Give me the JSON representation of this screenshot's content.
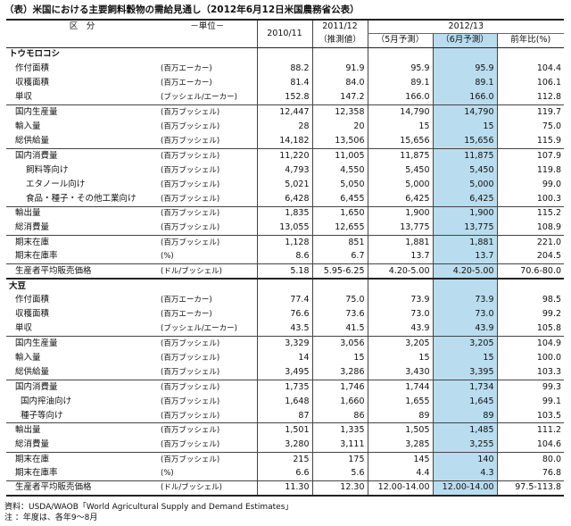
{
  "title": "（表）米国における主要飼料穀物の需給見通し（2012年6月12日米国農務省公表）",
  "header": {
    "col_item": "区　分",
    "col_unit": "－単位－",
    "col_2010": "2010/11",
    "col_2011": "2011/12",
    "col_2011_sub": "（推測値）",
    "col_2012": "2012/13",
    "col_may": "（5月予測）",
    "col_jun": "（6月予測）",
    "col_yoy": "前年比(%)"
  },
  "sections": [
    {
      "name": "トウモロコシ",
      "rows": [
        {
          "label": "作付面積",
          "unit": "(百万エーカー)",
          "v2010": "88.2",
          "v2011": "91.9",
          "may": "95.9",
          "jun": "95.9",
          "yoy": "104.4",
          "indent": 1,
          "line": false
        },
        {
          "label": "収穫面積",
          "unit": "(百万エーカー)",
          "v2010": "81.4",
          "v2011": "84.0",
          "may": "89.1",
          "jun": "89.1",
          "yoy": "106.1",
          "indent": 1,
          "line": false
        },
        {
          "label": "単収",
          "unit": "(ブッシェル/エーカー)",
          "v2010": "152.8",
          "v2011": "147.2",
          "may": "166.0",
          "jun": "166.0",
          "yoy": "112.8",
          "indent": 1,
          "line": true
        },
        {
          "label": "国内生産量",
          "unit": "(百万ブッシェル)",
          "v2010": "12,447",
          "v2011": "12,358",
          "may": "14,790",
          "jun": "14,790",
          "yoy": "119.7",
          "indent": 1,
          "line": false
        },
        {
          "label": "輸入量",
          "unit": "(百万ブッシェル)",
          "v2010": "28",
          "v2011": "20",
          "may": "15",
          "jun": "15",
          "yoy": "75.0",
          "indent": 1,
          "line": false
        },
        {
          "label": "総供給量",
          "unit": "(百万ブッシェル)",
          "v2010": "14,182",
          "v2011": "13,506",
          "may": "15,656",
          "jun": "15,656",
          "yoy": "115.9",
          "indent": 1,
          "line": true
        },
        {
          "label": "国内消費量",
          "unit": "(百万ブッシェル)",
          "v2010": "11,220",
          "v2011": "11,005",
          "may": "11,875",
          "jun": "11,875",
          "yoy": "107.9",
          "indent": 1,
          "line": false
        },
        {
          "label": "飼料等向け",
          "unit": "(百万ブッシェル)",
          "v2010": "4,793",
          "v2011": "4,550",
          "may": "5,450",
          "jun": "5,450",
          "yoy": "119.8",
          "indent": 2,
          "line": false
        },
        {
          "label": "エタノール向け",
          "unit": "(百万ブッシェル)",
          "v2010": "5,021",
          "v2011": "5,050",
          "may": "5,000",
          "jun": "5,000",
          "yoy": "99.0",
          "indent": 2,
          "line": false
        },
        {
          "label": "食品・種子・その他工業向け",
          "unit": "(百万ブッシェル)",
          "v2010": "6,428",
          "v2011": "6,455",
          "may": "6,425",
          "jun": "6,425",
          "yoy": "100.3",
          "indent": 2,
          "line": true
        },
        {
          "label": "輸出量",
          "unit": "(百万ブッシェル)",
          "v2010": "1,835",
          "v2011": "1,650",
          "may": "1,900",
          "jun": "1,900",
          "yoy": "115.2",
          "indent": 1,
          "line": false
        },
        {
          "label": "総消費量",
          "unit": "(百万ブッシェル)",
          "v2010": "13,055",
          "v2011": "12,655",
          "may": "13,775",
          "jun": "13,775",
          "yoy": "108.9",
          "indent": 1,
          "line": true
        },
        {
          "label": "期末在庫",
          "unit": "(百万ブッシェル)",
          "v2010": "1,128",
          "v2011": "851",
          "may": "1,881",
          "jun": "1,881",
          "yoy": "221.0",
          "indent": 1,
          "line": false
        },
        {
          "label": "期末在庫率",
          "unit": "(%)",
          "v2010": "8.6",
          "v2011": "6.7",
          "may": "13.7",
          "jun": "13.7",
          "yoy": "204.5",
          "indent": 1,
          "line": true
        },
        {
          "label": "生産者平均販売価格",
          "unit": "(ドル/ブッシェル)",
          "v2010": "5.18",
          "v2011": "5.95-6.25",
          "may": "4.20-5.00",
          "jun": "4.20-5.00",
          "yoy": "70.6-80.0",
          "indent": 1,
          "line": false
        }
      ]
    },
    {
      "name": "大豆",
      "rows": [
        {
          "label": "作付面積",
          "unit": "(百万エーカー)",
          "v2010": "77.4",
          "v2011": "75.0",
          "may": "73.9",
          "jun": "73.9",
          "yoy": "98.5",
          "indent": 1,
          "line": false
        },
        {
          "label": "収穫面積",
          "unit": "(百万エーカー)",
          "v2010": "76.6",
          "v2011": "73.6",
          "may": "73.0",
          "jun": "73.0",
          "yoy": "99.2",
          "indent": 1,
          "line": false
        },
        {
          "label": "単収",
          "unit": "(ブッシェル/エーカー)",
          "v2010": "43.5",
          "v2011": "41.5",
          "may": "43.9",
          "jun": "43.9",
          "yoy": "105.8",
          "indent": 1,
          "line": true
        },
        {
          "label": "国内生産量",
          "unit": "(百万ブッシェル)",
          "v2010": "3,329",
          "v2011": "3,056",
          "may": "3,205",
          "jun": "3,205",
          "yoy": "104.9",
          "indent": 1,
          "line": false
        },
        {
          "label": "輸入量",
          "unit": "(百万ブッシェル)",
          "v2010": "14",
          "v2011": "15",
          "may": "15",
          "jun": "15",
          "yoy": "100.0",
          "indent": 1,
          "line": false
        },
        {
          "label": "総供給量",
          "unit": "(百万ブッシェル)",
          "v2010": "3,495",
          "v2011": "3,286",
          "may": "3,430",
          "jun": "3,395",
          "yoy": "103.3",
          "indent": 1,
          "line": true
        },
        {
          "label": "国内消費量",
          "unit": "(百万ブッシェル)",
          "v2010": "1,735",
          "v2011": "1,746",
          "may": "1,744",
          "jun": "1,734",
          "yoy": "99.3",
          "indent": 1,
          "line": false
        },
        {
          "label": "国内搾油向け",
          "unit": "(百万ブッシェル)",
          "v2010": "1,648",
          "v2011": "1,660",
          "may": "1,655",
          "jun": "1,645",
          "yoy": "99.1",
          "indent": 3,
          "line": false
        },
        {
          "label": "種子等向け",
          "unit": "(百万ブッシェル)",
          "v2010": "87",
          "v2011": "86",
          "may": "89",
          "jun": "89",
          "yoy": "103.5",
          "indent": 3,
          "line": true
        },
        {
          "label": "輸出量",
          "unit": "(百万ブッシェル)",
          "v2010": "1,501",
          "v2011": "1,335",
          "may": "1,505",
          "jun": "1,485",
          "yoy": "111.2",
          "indent": 1,
          "line": false
        },
        {
          "label": "総消費量",
          "unit": "(百万ブッシェル)",
          "v2010": "3,280",
          "v2011": "3,111",
          "may": "3,285",
          "jun": "3,255",
          "yoy": "104.6",
          "indent": 1,
          "line": true
        },
        {
          "label": "期末在庫",
          "unit": "(百万ブッシェル)",
          "v2010": "215",
          "v2011": "175",
          "may": "145",
          "jun": "140",
          "yoy": "80.0",
          "indent": 1,
          "line": false
        },
        {
          "label": "期末在庫率",
          "unit": "(%)",
          "v2010": "6.6",
          "v2011": "5.6",
          "may": "4.4",
          "jun": "4.3",
          "yoy": "76.8",
          "indent": 1,
          "line": true
        },
        {
          "label": "生産者平均販売価格",
          "unit": "(ドル/ブッシェル)",
          "v2010": "11.30",
          "v2011": "12.30",
          "may": "12.00-14.00",
          "jun": "12.00-14.00",
          "yoy": "97.5-113.8",
          "indent": 1,
          "line": false
        }
      ]
    }
  ],
  "notes": {
    "source": "資料：USDA/WAOB「World Agricultural Supply and Demand Estimates」",
    "note": "注 ：年度は、各年9～8月"
  }
}
